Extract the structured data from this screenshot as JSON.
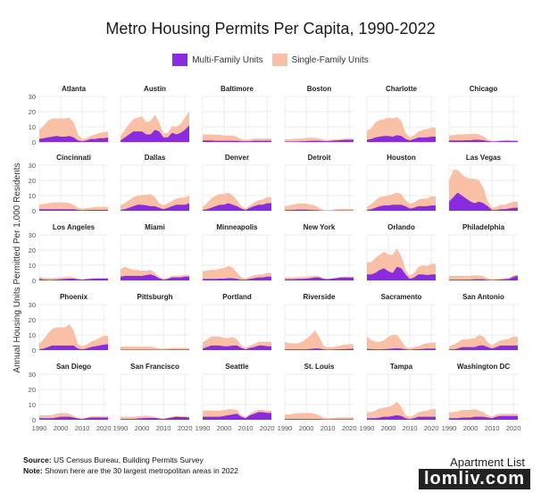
{
  "colors": {
    "multi": "#8a2be2",
    "single": "#f9c0a6",
    "grid": "#e8e8e8",
    "axis_text": "#555555"
  },
  "title": "Metro Housing Permits Per Capita, 1990-2022",
  "legend": {
    "multi": "Multi-Family Units",
    "single": "Single-Family Units"
  },
  "ylabel": "Annual Housing Units Permitted Per 1,000 Residents",
  "footer": {
    "source_label": "Source:",
    "source_text": " US Census Bureau, Building Permits Survey",
    "note_label": "Note:",
    "note_text": " Shown here are the 30 largest metropolitan areas in 2022"
  },
  "logo": {
    "text": "Apartment List"
  },
  "watermark": {
    "text": "lomliv.com"
  },
  "chart_data": {
    "type": "area",
    "stacked": true,
    "x": [
      1990,
      1992,
      1994,
      1996,
      1998,
      2000,
      2002,
      2004,
      2006,
      2008,
      2010,
      2012,
      2014,
      2016,
      2018,
      2020,
      2022
    ],
    "xticks": [
      "1990",
      "2000",
      "2010",
      "2020"
    ],
    "yticks": [
      "0",
      "10",
      "20",
      "30"
    ],
    "ylim": [
      0,
      30
    ],
    "metros": [
      {
        "name": "Atlanta",
        "multi": [
          2,
          2.5,
          3,
          3.5,
          4,
          3.5,
          3.5,
          4,
          3,
          1,
          0.5,
          1,
          2,
          2,
          2.5,
          2.5,
          3
        ],
        "single": [
          6,
          8,
          11,
          12,
          11.5,
          12,
          12,
          12,
          10,
          4,
          1.5,
          1.5,
          2,
          3,
          3.5,
          4,
          4
        ]
      },
      {
        "name": "Austin",
        "multi": [
          1,
          3,
          5,
          7,
          7,
          7,
          5,
          5,
          8,
          7,
          3,
          3,
          6,
          5,
          6,
          8,
          11
        ],
        "single": [
          3,
          5,
          7,
          8,
          9,
          10,
          8,
          9,
          10,
          6,
          2.5,
          3,
          4.5,
          5,
          6,
          8,
          9
        ]
      },
      {
        "name": "Baltimore",
        "multi": [
          1,
          1,
          1,
          0.8,
          0.8,
          0.8,
          0.8,
          0.8,
          0.8,
          0.5,
          0.5,
          0.5,
          0.8,
          0.8,
          0.8,
          0.8,
          0.8
        ],
        "single": [
          4,
          4,
          4,
          4,
          4,
          3.5,
          3.5,
          3.5,
          2.5,
          1.5,
          1,
          1.2,
          1.5,
          1.5,
          1.5,
          1.5,
          1.5
        ]
      },
      {
        "name": "Boston",
        "multi": [
          0.3,
          0.3,
          0.3,
          0.4,
          0.5,
          0.6,
          0.8,
          0.8,
          0.8,
          0.6,
          0.5,
          0.8,
          1,
          1.2,
          1.5,
          1.5,
          1.5
        ],
        "single": [
          1.5,
          1.5,
          1.8,
          1.8,
          1.8,
          2,
          2,
          2,
          1.5,
          1,
          0.8,
          0.8,
          0.8,
          0.8,
          0.8,
          0.8,
          0.8
        ]
      },
      {
        "name": "Charlotte",
        "multi": [
          1.5,
          2,
          3,
          3.5,
          4,
          4,
          3.5,
          4.5,
          4,
          2,
          1,
          2,
          3,
          3,
          3,
          3.5,
          3.5
        ],
        "single": [
          6,
          7,
          10,
          11,
          11,
          12,
          12,
          12,
          10,
          4,
          2,
          2.5,
          4,
          5,
          5.5,
          6,
          6
        ]
      },
      {
        "name": "Chicago",
        "multi": [
          1,
          1,
          1,
          1,
          1.2,
          1.2,
          1.5,
          1.5,
          1.2,
          0.6,
          0.3,
          0.4,
          0.6,
          0.7,
          0.7,
          0.6,
          0.6
        ],
        "single": [
          3.5,
          3.5,
          4,
          4,
          4,
          4,
          4,
          3.5,
          2.5,
          1,
          0.5,
          0.5,
          0.6,
          0.6,
          0.6,
          0.6,
          0.6
        ]
      },
      {
        "name": "Cincinnati",
        "multi": [
          1,
          1,
          1,
          1,
          1,
          1,
          1,
          1,
          1,
          0.5,
          0.4,
          0.5,
          0.6,
          0.6,
          0.6,
          0.6,
          0.6
        ],
        "single": [
          3,
          3.5,
          4,
          4.5,
          4.5,
          4.5,
          4.5,
          4,
          3,
          1.5,
          1,
          1.2,
          1.5,
          1.8,
          2,
          2,
          2
        ]
      },
      {
        "name": "Dallas",
        "multi": [
          0.5,
          1,
          2,
          3,
          4,
          4,
          3.5,
          3,
          3,
          2,
          1,
          2,
          3,
          4,
          4,
          4,
          5
        ],
        "single": [
          3,
          4,
          5,
          6,
          6,
          6.5,
          7,
          8,
          6,
          3,
          2.5,
          3,
          3.5,
          4,
          4.5,
          5,
          5
        ]
      },
      {
        "name": "Denver",
        "multi": [
          0.5,
          1,
          2,
          3,
          4,
          4,
          5,
          4,
          3,
          1.5,
          0.5,
          2,
          3,
          4,
          4,
          5,
          5
        ],
        "single": [
          2,
          4,
          6,
          7,
          7,
          7,
          7,
          6,
          4,
          1.5,
          1,
          1.5,
          2.5,
          3,
          3.5,
          4,
          4
        ]
      },
      {
        "name": "Detroit",
        "multi": [
          0.5,
          0.5,
          0.6,
          0.8,
          0.8,
          0.8,
          0.6,
          0.5,
          0.3,
          0.1,
          0.1,
          0.1,
          0.2,
          0.2,
          0.2,
          0.2,
          0.2
        ],
        "single": [
          2.5,
          3,
          3.5,
          4,
          4,
          4,
          3.5,
          3,
          1.5,
          0.5,
          0.3,
          0.5,
          0.8,
          1,
          1,
          1,
          1
        ]
      },
      {
        "name": "Houston",
        "multi": [
          0.5,
          1,
          2,
          3,
          3.5,
          3.5,
          4,
          4,
          4,
          3,
          1.5,
          2,
          3,
          3,
          3,
          3.5,
          3.5
        ],
        "single": [
          2,
          3.5,
          5,
          6,
          6,
          6.5,
          7,
          8,
          7,
          4,
          3,
          3.5,
          4.5,
          5,
          5,
          6,
          6
        ]
      },
      {
        "name": "Las Vegas",
        "multi": [
          6,
          9,
          12,
          10,
          8,
          6,
          5,
          6,
          5,
          3,
          0.5,
          0.5,
          1,
          1,
          1.5,
          2,
          2
        ],
        "single": [
          14,
          18,
          15,
          14,
          14,
          15,
          16,
          14,
          10,
          3,
          1.5,
          2,
          3,
          3,
          3.5,
          4,
          4
        ]
      },
      {
        "name": "Los Angeles",
        "multi": [
          1,
          0.6,
          0.4,
          0.4,
          0.6,
          0.8,
          1,
          1.2,
          1.2,
          0.8,
          0.5,
          0.8,
          1,
          1.2,
          1.2,
          1.2,
          1.2
        ],
        "single": [
          1.5,
          1.2,
          1.2,
          1.2,
          1.2,
          1.2,
          1.2,
          1.2,
          0.8,
          0.4,
          0.3,
          0.4,
          0.5,
          0.5,
          0.5,
          0.5,
          0.5
        ]
      },
      {
        "name": "Miami",
        "multi": [
          2.5,
          3,
          3,
          3,
          3,
          3,
          3.5,
          4,
          3,
          1.5,
          0.5,
          1,
          2,
          2,
          2,
          2.5,
          2.5
        ],
        "single": [
          5,
          6,
          5,
          4,
          4,
          3.5,
          3,
          3,
          2,
          0.8,
          0.5,
          0.6,
          1,
          1,
          1.2,
          1.2,
          1.2
        ]
      },
      {
        "name": "Minneapolis",
        "multi": [
          1,
          1,
          1,
          1,
          1.2,
          1.2,
          1.5,
          1.5,
          1,
          0.5,
          0.5,
          1,
          1.5,
          2,
          2,
          2.5,
          2.5
        ],
        "single": [
          5,
          5.5,
          6,
          6,
          6.5,
          7,
          8,
          7,
          4,
          1.5,
          1,
          1.5,
          2,
          2,
          2,
          2.5,
          2.5
        ]
      },
      {
        "name": "New York",
        "multi": [
          0.8,
          0.8,
          0.8,
          1,
          1,
          1.2,
          1.5,
          2,
          2,
          1,
          0.8,
          1.2,
          1.5,
          2,
          2,
          2,
          2
        ],
        "single": [
          1.2,
          1.2,
          1.2,
          1.2,
          1.2,
          1.2,
          1.2,
          1.2,
          0.8,
          0.4,
          0.3,
          0.3,
          0.3,
          0.3,
          0.3,
          0.3,
          0.3
        ]
      },
      {
        "name": "Orlando",
        "multi": [
          4,
          4,
          5,
          7,
          8,
          6,
          5,
          9,
          8,
          4,
          1,
          2,
          4,
          4,
          3.5,
          4,
          4
        ],
        "single": [
          8,
          8,
          10,
          10,
          11,
          11,
          12,
          12,
          8,
          3,
          2,
          3,
          5,
          6,
          6,
          7,
          7
        ]
      },
      {
        "name": "Philadelphia",
        "multi": [
          0.5,
          0.5,
          0.5,
          0.5,
          0.5,
          0.6,
          0.8,
          0.8,
          0.8,
          0.4,
          0.3,
          0.4,
          0.6,
          0.8,
          1,
          2.5,
          3
        ],
        "single": [
          2.5,
          2.5,
          2.5,
          2.5,
          2.5,
          2.5,
          2.5,
          2.5,
          2,
          1,
          0.6,
          0.6,
          0.7,
          0.8,
          0.8,
          0.8,
          0.8
        ]
      },
      {
        "name": "Phoenix",
        "multi": [
          0.5,
          1,
          2,
          3,
          3,
          3,
          3,
          3,
          3,
          1,
          0.5,
          1,
          2,
          2.5,
          3,
          3.5,
          4
        ],
        "single": [
          4,
          6,
          9,
          11,
          12,
          12,
          12,
          14,
          10,
          3,
          2,
          2.5,
          3.5,
          4,
          5,
          6,
          5.5
        ]
      },
      {
        "name": "Pittsburgh",
        "multi": [
          0.3,
          0.3,
          0.3,
          0.3,
          0.3,
          0.3,
          0.3,
          0.3,
          0.3,
          0.2,
          0.2,
          0.3,
          0.4,
          0.4,
          0.4,
          0.4,
          0.4
        ],
        "single": [
          2,
          2,
          2,
          2,
          2,
          2,
          2,
          2,
          1.5,
          1,
          0.8,
          0.9,
          1,
          1,
          1,
          1,
          1
        ]
      },
      {
        "name": "Portland",
        "multi": [
          1,
          2,
          3,
          3,
          3,
          2.5,
          2.5,
          3,
          3,
          1.5,
          0.5,
          1.5,
          2,
          3,
          3,
          2.5,
          2.5
        ],
        "single": [
          4,
          5,
          6,
          6,
          6,
          5.5,
          5.5,
          5.5,
          4,
          1.5,
          1,
          1.5,
          2,
          2.5,
          2.5,
          3,
          3
        ]
      },
      {
        "name": "Riverside",
        "multi": [
          0.5,
          0.5,
          0.5,
          0.5,
          0.5,
          0.5,
          0.8,
          1,
          1,
          0.5,
          0.3,
          0.4,
          0.5,
          0.6,
          0.6,
          0.8,
          0.8
        ],
        "single": [
          5,
          4,
          4,
          4,
          5,
          7,
          9,
          12,
          8,
          2.5,
          1.5,
          1.5,
          2,
          2.5,
          3,
          3,
          3
        ]
      },
      {
        "name": "Sacramento",
        "multi": [
          0.8,
          0.6,
          0.5,
          0.5,
          0.6,
          0.8,
          1,
          1.2,
          1,
          0.5,
          0.3,
          0.5,
          0.6,
          0.8,
          1,
          1,
          1
        ],
        "single": [
          8,
          6,
          5,
          5,
          6,
          8,
          9,
          9,
          5,
          1.5,
          1,
          1.5,
          2,
          3,
          3.5,
          4,
          4
        ]
      },
      {
        "name": "San Antonio",
        "multi": [
          0.5,
          0.5,
          1,
          2,
          2,
          2,
          2,
          3,
          3,
          2,
          1,
          2,
          3,
          3,
          3,
          3,
          3
        ],
        "single": [
          2,
          3,
          4,
          5,
          5,
          5.5,
          6,
          7,
          6,
          3,
          2,
          3,
          3.5,
          4,
          4.5,
          6,
          5.5
        ]
      },
      {
        "name": "San Diego",
        "multi": [
          1,
          1,
          1,
          1,
          1.5,
          2,
          2,
          2,
          1.5,
          0.8,
          0.5,
          1,
          1.5,
          1.5,
          1.5,
          1.5,
          1.5
        ],
        "single": [
          2,
          2,
          2,
          2,
          2.5,
          2.5,
          2.5,
          2,
          1,
          0.5,
          0.4,
          0.5,
          0.8,
          0.8,
          0.8,
          0.8,
          0.8
        ]
      },
      {
        "name": "San Francisco",
        "multi": [
          0.5,
          0.5,
          0.5,
          0.5,
          0.8,
          1,
          1.2,
          1.2,
          1.2,
          0.8,
          0.5,
          1,
          1.5,
          2,
          1.8,
          1.8,
          1.5
        ],
        "single": [
          1.5,
          1.5,
          1.5,
          1.5,
          1.5,
          1.5,
          1.5,
          1.2,
          0.8,
          0.4,
          0.3,
          0.4,
          0.5,
          0.5,
          0.5,
          0.5,
          0.5
        ]
      },
      {
        "name": "Seattle",
        "multi": [
          2,
          2,
          2,
          2,
          2,
          2.5,
          3,
          3.5,
          4,
          2,
          1,
          3,
          4,
          5,
          5,
          4.5,
          4.5
        ],
        "single": [
          4,
          4,
          4,
          4,
          4,
          4,
          4,
          3.5,
          2.5,
          1,
          0.8,
          1,
          1.5,
          1.5,
          1.5,
          1.5,
          1.5
        ]
      },
      {
        "name": "St. Louis",
        "multi": [
          0.5,
          0.5,
          0.5,
          0.5,
          0.5,
          0.5,
          0.5,
          0.5,
          0.5,
          0.3,
          0.2,
          0.3,
          0.4,
          0.4,
          0.4,
          0.4,
          0.4
        ],
        "single": [
          3,
          3,
          3.5,
          4,
          4,
          4,
          4,
          3.5,
          2.5,
          1,
          0.8,
          0.9,
          1,
          1.2,
          1.2,
          1.3,
          1.3
        ]
      },
      {
        "name": "Tampa",
        "multi": [
          1,
          1,
          1,
          1.5,
          2,
          2,
          2.5,
          3,
          2.5,
          1,
          0.5,
          1,
          2,
          2,
          2,
          2,
          2
        ],
        "single": [
          4,
          4,
          5,
          6,
          6,
          6.5,
          7,
          9,
          6,
          2,
          1.5,
          2,
          3,
          3.5,
          4,
          5,
          5
        ]
      },
      {
        "name": "Washington DC",
        "multi": [
          1,
          1,
          1,
          1.5,
          1.5,
          1.5,
          2,
          2,
          2,
          1.5,
          1,
          2,
          2.5,
          2.5,
          2.5,
          2.5,
          2.5
        ],
        "single": [
          4,
          4,
          4.5,
          5,
          5,
          5,
          5,
          4,
          3,
          1.5,
          1,
          1.5,
          1.5,
          1.5,
          1.5,
          1.5,
          1.5
        ]
      }
    ]
  }
}
